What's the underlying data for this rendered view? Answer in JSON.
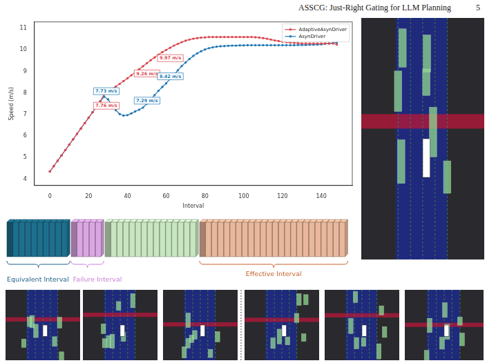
{
  "header": {
    "title": "ASSCG: Just-Right Gating for LLM Planning",
    "page": "5"
  },
  "chart_data": {
    "type": "line",
    "x_label": "Interval",
    "y_label": "Speed (m/s)",
    "xlim": [
      -8,
      156
    ],
    "ylim": [
      3.7,
      11.3
    ],
    "xticks": [
      0,
      20,
      40,
      60,
      80,
      100,
      120,
      140
    ],
    "yticks": [
      4,
      5,
      6,
      7,
      8,
      9,
      10,
      11
    ],
    "grid": false,
    "legend": "upper right",
    "marker": "circle",
    "x": [
      0,
      2,
      4,
      6,
      8,
      10,
      12,
      14,
      16,
      18,
      20,
      22,
      24,
      26,
      28,
      30,
      32,
      34,
      36,
      38,
      40,
      42,
      44,
      46,
      48,
      50,
      52,
      54,
      56,
      58,
      60,
      62,
      64,
      66,
      68,
      70,
      72,
      74,
      76,
      78,
      80,
      82,
      84,
      86,
      88,
      90,
      92,
      94,
      96,
      98,
      100,
      102,
      104,
      106,
      108,
      110,
      112,
      114,
      116,
      118,
      120,
      122,
      124,
      126,
      128,
      130,
      132,
      134,
      136,
      138,
      140,
      142,
      144,
      146,
      148
    ],
    "series": [
      {
        "name": "AdaptiveAsynDriver",
        "color": "#d9474f",
        "values": [
          4.35,
          4.6,
          4.85,
          5.1,
          5.35,
          5.6,
          5.85,
          6.1,
          6.35,
          6.6,
          6.85,
          7.1,
          7.35,
          7.6,
          7.95,
          8.05,
          8.18,
          8.3,
          8.42,
          8.55,
          8.68,
          8.82,
          8.96,
          9.1,
          9.24,
          9.38,
          9.52,
          9.65,
          9.78,
          9.9,
          10.0,
          10.1,
          10.2,
          10.28,
          10.36,
          10.43,
          10.48,
          10.52,
          10.55,
          10.57,
          10.58,
          10.6,
          10.6,
          10.6,
          10.6,
          10.6,
          10.6,
          10.6,
          10.6,
          10.6,
          10.6,
          10.6,
          10.6,
          10.59,
          10.57,
          10.55,
          10.52,
          10.48,
          10.44,
          10.41,
          10.38,
          10.36,
          10.34,
          10.33,
          10.32,
          10.3,
          10.3,
          10.3,
          10.3,
          10.3,
          10.3,
          10.3,
          10.3,
          10.3,
          10.25
        ]
      },
      {
        "name": "AsynDriver",
        "color": "#1f77b4",
        "values": [
          4.35,
          4.6,
          4.85,
          5.1,
          5.35,
          5.6,
          5.85,
          6.1,
          6.35,
          6.6,
          6.85,
          7.1,
          7.35,
          7.62,
          7.83,
          7.7,
          7.45,
          7.2,
          7.02,
          6.95,
          6.97,
          7.05,
          7.14,
          7.22,
          7.32,
          7.5,
          7.7,
          7.9,
          8.1,
          8.28,
          8.45,
          8.65,
          8.85,
          9.05,
          9.25,
          9.42,
          9.58,
          9.72,
          9.84,
          9.94,
          10.02,
          10.08,
          10.12,
          10.15,
          10.17,
          10.18,
          10.19,
          10.2,
          10.2,
          10.21,
          10.21,
          10.22,
          10.22,
          10.22,
          10.22,
          10.22,
          10.22,
          10.22,
          10.22,
          10.22,
          10.22,
          10.22,
          10.22,
          10.22,
          10.23,
          10.23,
          10.23,
          10.24,
          10.24,
          10.25,
          10.26,
          10.28,
          10.3,
          10.32,
          10.35
        ]
      }
    ],
    "annotations": [
      {
        "text": "7.73 m/s",
        "x": 27,
        "y": 7.73,
        "series": "AsynDriver"
      },
      {
        "text": "7.76 m/s",
        "x": 27,
        "y": 7.76,
        "series": "AdaptiveAsynDriver"
      },
      {
        "text": "7.29 m/s",
        "x": 48,
        "y": 7.29,
        "series": "AsynDriver"
      },
      {
        "text": "9.26 m/s",
        "x": 48,
        "y": 9.26,
        "series": "AdaptiveAsynDriver"
      },
      {
        "text": "8.42 m/s",
        "x": 60,
        "y": 8.42,
        "series": "AsynDriver"
      },
      {
        "text": "9.97 m/s",
        "x": 60,
        "y": 9.97,
        "series": "AdaptiveAsynDriver"
      }
    ]
  },
  "diagram": {
    "segments": [
      {
        "count": 10,
        "color": "#1d6f8e"
      },
      {
        "count": 5,
        "color": "#dba7e3"
      },
      {
        "count": 15,
        "color": "#c8e6c0"
      },
      {
        "count": 24,
        "color": "#e9b89c"
      }
    ],
    "labels": [
      {
        "text": "Equivalent Interval",
        "segment": 0,
        "color": "#1d5f86"
      },
      {
        "text": "Failure Interval",
        "segment": 1,
        "color": "#c87fd8"
      },
      {
        "text": "Effective Interval",
        "segment": 3,
        "color": "#c4622d"
      }
    ]
  }
}
